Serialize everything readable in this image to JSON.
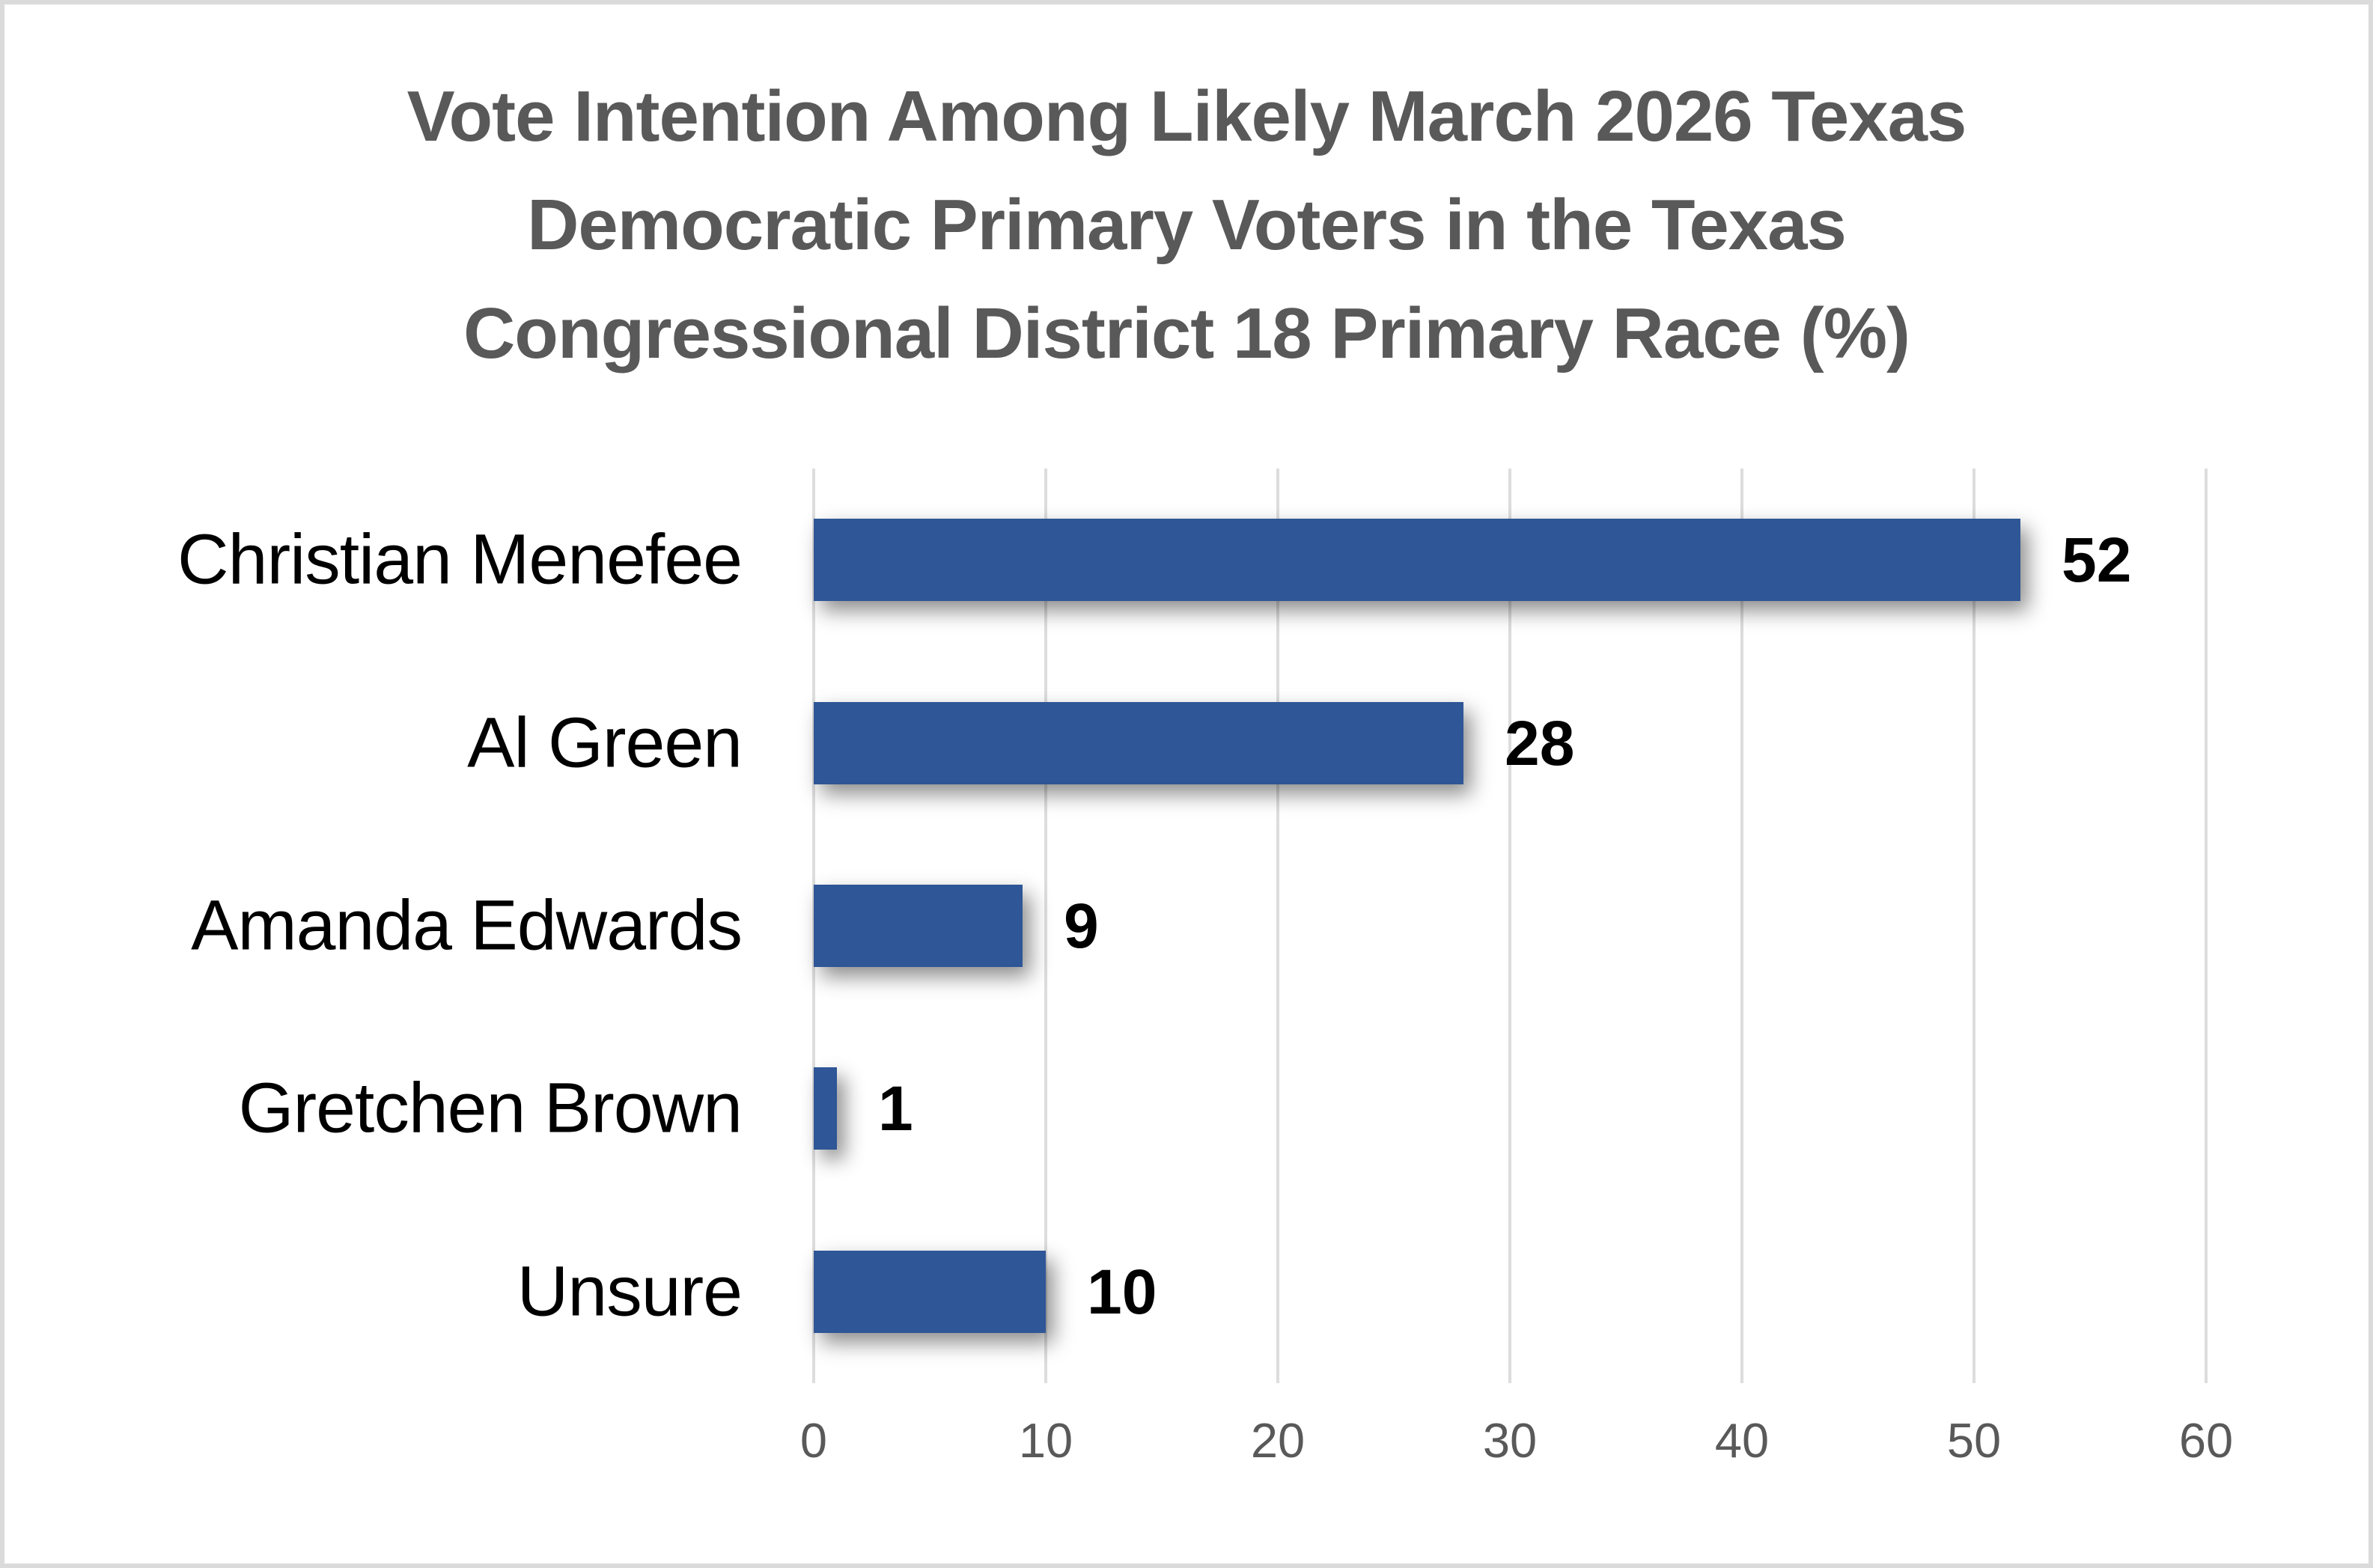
{
  "frame": {
    "border_color": "#dbdbdb",
    "background_color": "#ffffff"
  },
  "title": {
    "lines": [
      "Vote Intention Among Likely March 2026 Texas",
      "Democratic Primary Voters in the Texas",
      "Congressional District 18 Primary Race (%)"
    ],
    "color": "#595959"
  },
  "chart_data": {
    "type": "bar",
    "orientation": "horizontal",
    "title": "Vote Intention Among Likely March 2026 Texas Democratic Primary Voters in the Texas Congressional District 18 Primary Race (%)",
    "categories": [
      "Christian Menefee",
      "Al Green",
      "Amanda Edwards",
      "Gretchen Brown",
      "Unsure"
    ],
    "values": [
      52,
      28,
      9,
      1,
      10
    ],
    "data_labels": [
      "52",
      "28",
      "9",
      "1",
      "10"
    ],
    "xlabel": "",
    "ylabel": "",
    "xlim": [
      0,
      60
    ],
    "x_ticks": [
      0,
      10,
      20,
      30,
      40,
      50,
      60
    ],
    "grid": true,
    "legend": false,
    "bar_color": "#2f5696",
    "gridline_color": "#dddddd",
    "tick_label_color": "#595959",
    "category_label_color": "#000000",
    "value_label_color": "#000000"
  }
}
